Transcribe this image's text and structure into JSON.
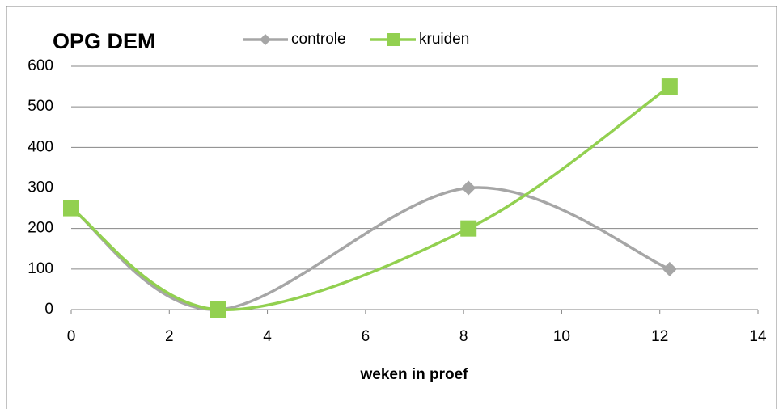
{
  "chart_data": {
    "type": "line",
    "title": "OPG DEM",
    "x_label": "weken in proef",
    "x": [
      0,
      3,
      8.1,
      12.2
    ],
    "series": [
      {
        "name": "controle",
        "color": "#a6a6a6",
        "marker": "diamond",
        "values": [
          250,
          0,
          300,
          100
        ]
      },
      {
        "name": "kruiden",
        "color": "#92d050",
        "marker": "square",
        "values": [
          250,
          0,
          200,
          550
        ]
      }
    ],
    "xlim": [
      0,
      14
    ],
    "xticks": [
      0,
      2,
      4,
      6,
      8,
      10,
      12,
      14
    ],
    "ylim": [
      0,
      600
    ],
    "yticks": [
      0,
      100,
      200,
      300,
      400,
      500,
      600
    ],
    "grid": true,
    "smooth": true,
    "legend": "top"
  }
}
